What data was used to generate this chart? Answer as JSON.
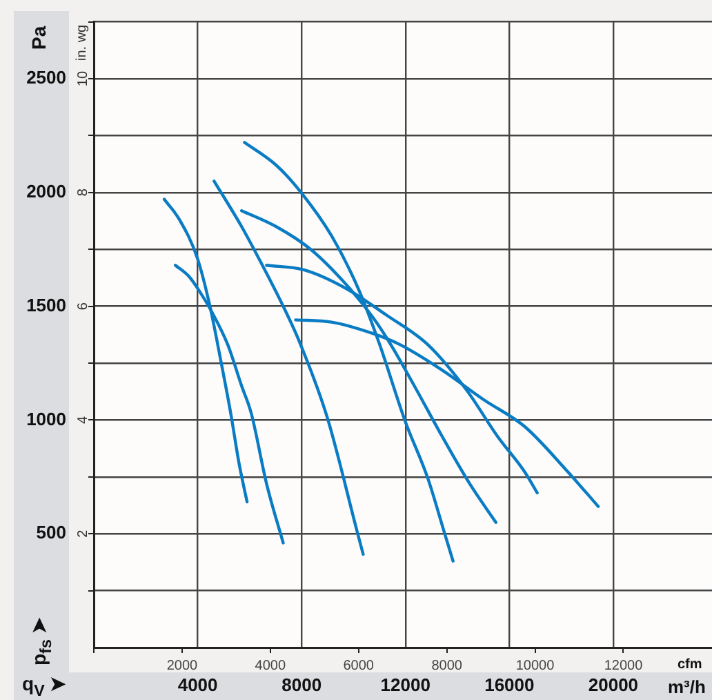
{
  "chart_data": {
    "type": "line",
    "ylabel": "Pa",
    "y2label": "in. wg",
    "xlabel": "m³/h",
    "x2label": "cfm",
    "annotations": [
      "p$_{fs}$ ➤",
      "q$_{V}$ ➤"
    ],
    "xlim": [
      0,
      23800
    ],
    "xticks": [
      4000,
      8000,
      12000,
      16000,
      20000
    ],
    "x2lim": [
      0,
      14010
    ],
    "x2ticks": [
      {
        "value": 0,
        "label": null
      },
      2000,
      4000,
      6000,
      8000,
      10000,
      12000
    ],
    "ylim": [
      0,
      2750
    ],
    "yticks": [
      {
        "value": 250,
        "label": null
      },
      500,
      {
        "value": 750,
        "label": null
      },
      1000,
      {
        "value": 1250,
        "label": null
      },
      1500,
      {
        "value": 1750,
        "label": null
      },
      2000,
      {
        "value": 2250,
        "label": null
      },
      2500,
      {
        "value": 2750,
        "label": null
      }
    ],
    "y2lim": [
      0,
      11
    ],
    "y2ticks": [
      {
        "value": 1,
        "label": null
      },
      2,
      {
        "value": 3,
        "label": null
      },
      4,
      {
        "value": 5,
        "label": null
      },
      6,
      {
        "value": 7,
        "label": null
      },
      8,
      {
        "value": 9,
        "label": null
      },
      10,
      {
        "value": 11,
        "label": null
      }
    ],
    "grid": true,
    "legend": false,
    "marker": "none",
    "line_style": "solid",
    "series": [
      {
        "color": "#0a7cc4",
        "x": [
          2710,
          3300,
          3990,
          4470,
          4890,
          5270,
          5590,
          5900
        ],
        "values": [
          1970,
          1880,
          1710,
          1500,
          1260,
          1030,
          810,
          640
        ]
      },
      {
        "color": "#0a7cc4",
        "x": [
          3140,
          3670,
          4100,
          4520,
          5160,
          5690,
          6060,
          6650,
          7290
        ],
        "values": [
          1680,
          1630,
          1560,
          1480,
          1330,
          1150,
          1030,
          720,
          460
        ]
      },
      {
        "color": "#0a7cc4",
        "x": [
          4630,
          5690,
          6490,
          7290,
          7930,
          8990,
          10160,
          10370
        ],
        "values": [
          2050,
          1850,
          1680,
          1500,
          1340,
          1010,
          500,
          410
        ]
      },
      {
        "color": "#0a7cc4",
        "x": [
          5800,
          7020,
          7980,
          9150,
          10210,
          11010,
          11970,
          12870,
          13510,
          13830
        ],
        "values": [
          2220,
          2120,
          2000,
          1810,
          1570,
          1330,
          1000,
          740,
          500,
          380
        ]
      },
      {
        "color": "#0a7cc4",
        "x": [
          5690,
          7020,
          8350,
          9680,
          10750,
          11440,
          12340,
          13400,
          14470,
          15480
        ],
        "values": [
          1920,
          1850,
          1750,
          1600,
          1450,
          1330,
          1150,
          930,
          720,
          550
        ]
      },
      {
        "color": "#0a7cc4",
        "x": [
          6650,
          8090,
          9680,
          11280,
          12870,
          14360,
          15530,
          16600,
          17070
        ],
        "values": [
          1680,
          1660,
          1580,
          1460,
          1330,
          1130,
          930,
          770,
          680
        ]
      },
      {
        "color": "#0a7cc4",
        "x": [
          7770,
          9150,
          10750,
          11810,
          13400,
          15000,
          16600,
          18190,
          19420
        ],
        "values": [
          1440,
          1430,
          1380,
          1330,
          1220,
          1090,
          970,
          780,
          620
        ]
      }
    ]
  }
}
